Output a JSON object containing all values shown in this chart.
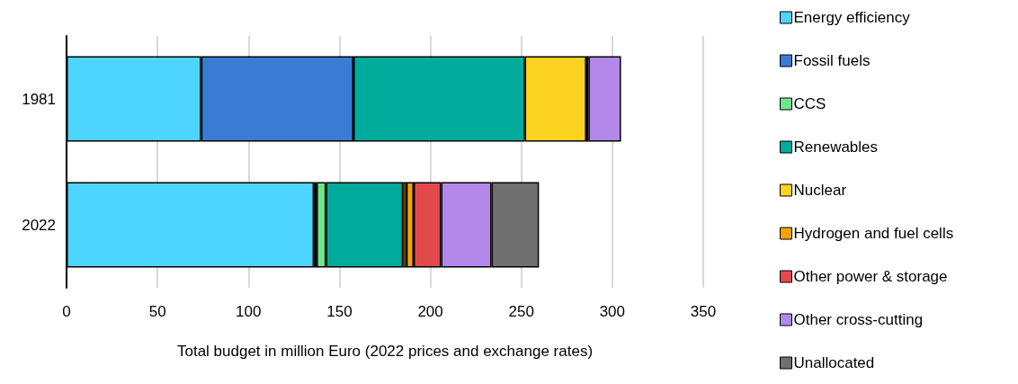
{
  "chart_data": {
    "type": "bar",
    "orientation": "horizontal",
    "stacked": true,
    "xlabel": "Total budget in million Euro (2022 prices and exchange rates)",
    "categories": [
      "1981",
      "2022"
    ],
    "xlim": [
      0,
      350
    ],
    "xticks": [
      0,
      50,
      100,
      150,
      200,
      250,
      300,
      350
    ],
    "grid": "x",
    "legend": "right",
    "series": [
      {
        "name": "Energy efficiency",
        "color": "#4dd4ff",
        "values": [
          74,
          136
        ]
      },
      {
        "name": "Fossil fuels",
        "color": "#3a7bd5",
        "values": [
          83.7,
          1.5
        ]
      },
      {
        "name": "CCS",
        "color": "#6ee68a",
        "values": [
          null,
          5.1
        ]
      },
      {
        "name": "Renewables",
        "color": "#00ab9b",
        "values": [
          94.2,
          42.4
        ]
      },
      {
        "name": "Nuclear",
        "color": "#fdd321",
        "values": [
          33.8,
          1.8
        ]
      },
      {
        "name": "Hydrogen and fuel cells",
        "color": "#f5a300",
        "values": [
          1.2,
          4
        ]
      },
      {
        "name": "Other power & storage",
        "color": "#e24a4a",
        "values": [
          null,
          15.1
        ]
      },
      {
        "name": "Other cross-cutting",
        "color": "#b388eb",
        "values": [
          17.9,
          27.7
        ]
      },
      {
        "name": "Unallocated",
        "color": "#707070",
        "values": [
          null,
          26.1
        ]
      }
    ]
  }
}
